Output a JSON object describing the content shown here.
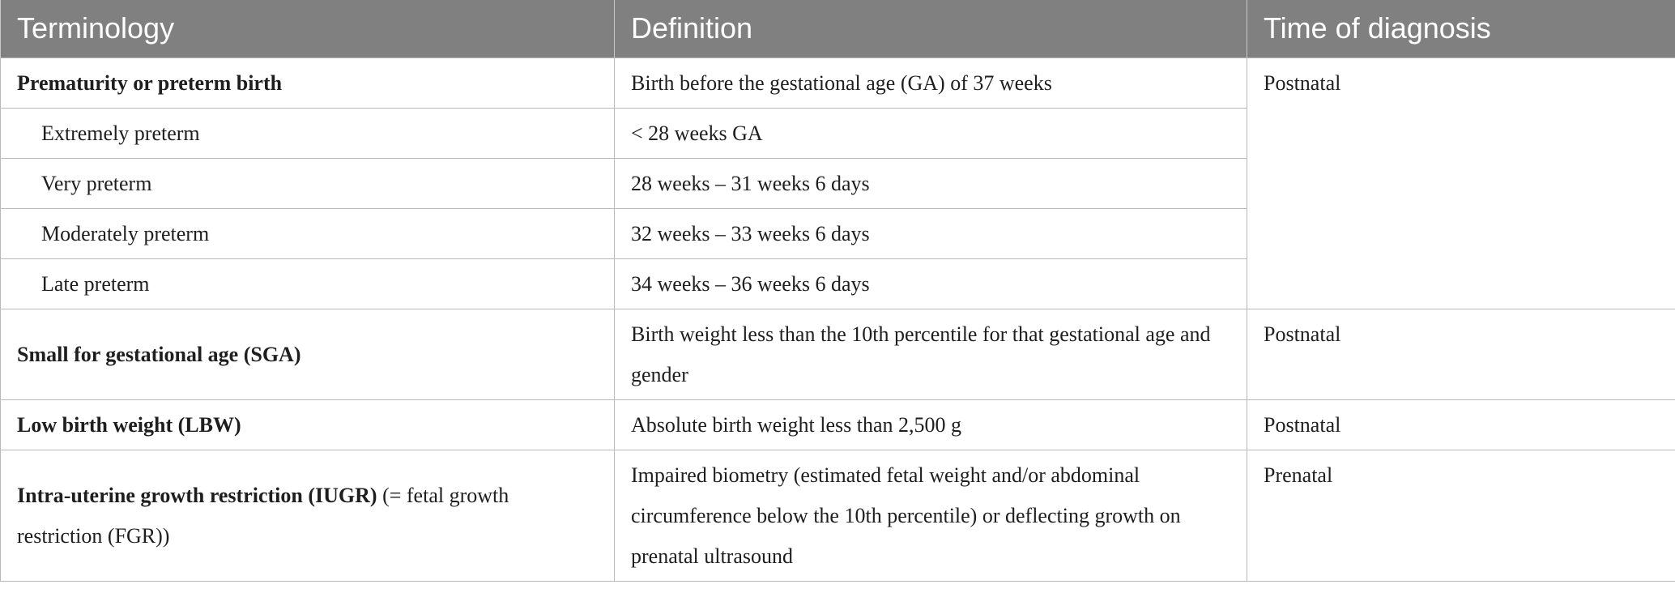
{
  "table": {
    "headers": [
      "Terminology",
      "Definition",
      "Time of diagnosis"
    ],
    "rows": [
      {
        "term_bold": "Prematurity or preterm birth",
        "term_rest": "",
        "definition": "Birth before the gestational age (GA) of 37 weeks",
        "diagnosis": "Postnatal"
      },
      {
        "term_bold": "",
        "term_rest": "Extremely preterm",
        "definition": "< 28 weeks GA"
      },
      {
        "term_bold": "",
        "term_rest": "Very preterm",
        "definition": "28 weeks – 31 weeks 6 days"
      },
      {
        "term_bold": "",
        "term_rest": "Moderately preterm",
        "definition": "32 weeks – 33 weeks 6 days"
      },
      {
        "term_bold": "",
        "term_rest": "Late preterm",
        "definition": "34 weeks – 36 weeks 6 days"
      },
      {
        "term_bold": "Small for gestational age (SGA)",
        "term_rest": "",
        "definition": "Birth weight less than the 10th percentile for that gestational age and gender",
        "diagnosis": "Postnatal"
      },
      {
        "term_bold": "Low birth weight (LBW)",
        "term_rest": "",
        "definition": "Absolute birth weight less than 2,500 g",
        "diagnosis": "Postnatal"
      },
      {
        "term_bold": "Intra-uterine growth restriction (IUGR)",
        "term_rest": " (= fetal growth restriction (FGR))",
        "definition": "Impaired biometry (estimated fetal weight and/or abdominal circumference below the 10th percentile) or deflecting growth on prenatal ultrasound",
        "diagnosis": "Prenatal"
      }
    ]
  }
}
